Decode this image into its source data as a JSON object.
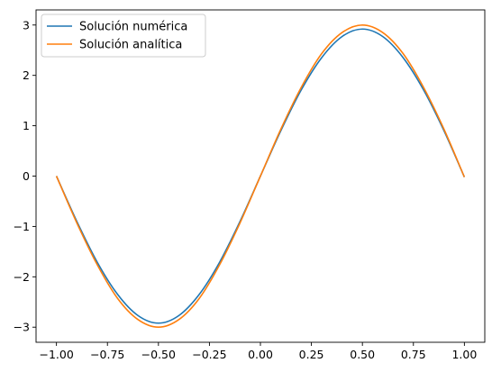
{
  "chart_data": {
    "type": "line",
    "title": "",
    "xlabel": "",
    "ylabel": "",
    "xlim": [
      -1.1,
      1.1
    ],
    "ylim": [
      -3.3,
      3.3
    ],
    "grid": false,
    "legend_placement": "top-left",
    "xticks": [
      -1.0,
      -0.75,
      -0.5,
      -0.25,
      0.0,
      0.25,
      0.5,
      0.75,
      1.0
    ],
    "xtick_labels": [
      "−1.00",
      "−0.75",
      "−0.50",
      "−0.25",
      "0.00",
      "0.25",
      "0.50",
      "0.75",
      "1.00"
    ],
    "yticks": [
      -3,
      -2,
      -1,
      0,
      1,
      2,
      3
    ],
    "ytick_labels": [
      "−3",
      "−2",
      "−1",
      "0",
      "1",
      "2",
      "3"
    ],
    "series": [
      {
        "name": "Solución numérica",
        "color": "#1f77b4",
        "x": [
          -1.0,
          -0.9,
          -0.8,
          -0.7,
          -0.6,
          -0.5,
          -0.4,
          -0.3,
          -0.2,
          -0.1,
          0.0,
          0.1,
          0.2,
          0.3,
          0.4,
          0.5,
          0.6,
          0.7,
          0.8,
          0.9,
          1.0
        ],
        "y": [
          0.0,
          -0.9,
          -1.71,
          -2.35,
          -2.77,
          -2.92,
          -2.77,
          -2.35,
          -1.71,
          -0.9,
          0.0,
          0.9,
          1.71,
          2.35,
          2.77,
          2.92,
          2.77,
          2.35,
          1.71,
          0.9,
          -0.02
        ]
      },
      {
        "name": "Solución analítica",
        "color": "#ff7f0e",
        "x": [
          -1.0,
          -0.9,
          -0.8,
          -0.7,
          -0.6,
          -0.5,
          -0.4,
          -0.3,
          -0.2,
          -0.1,
          0.0,
          0.1,
          0.2,
          0.3,
          0.4,
          0.5,
          0.6,
          0.7,
          0.8,
          0.9,
          1.0
        ],
        "y": [
          0.0,
          -0.93,
          -1.76,
          -2.43,
          -2.85,
          -3.0,
          -2.85,
          -2.43,
          -1.76,
          -0.93,
          0.0,
          0.93,
          1.76,
          2.43,
          2.85,
          3.0,
          2.85,
          2.43,
          1.76,
          0.93,
          -0.02
        ]
      }
    ]
  }
}
